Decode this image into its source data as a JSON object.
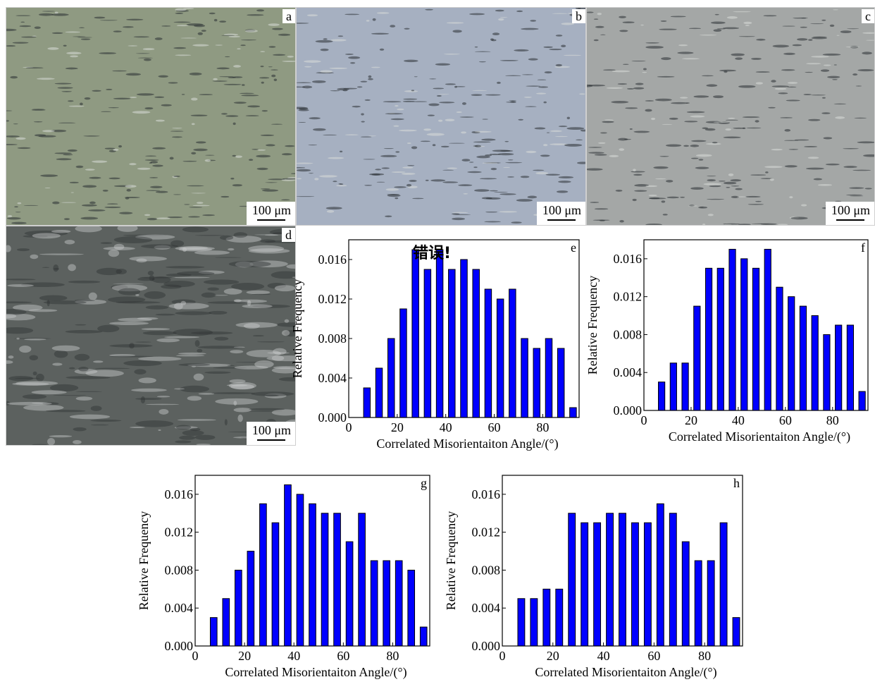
{
  "micrographs": [
    {
      "label": "a",
      "scale": "100  μm",
      "base": "#8f9a82"
    },
    {
      "label": "b",
      "scale": "100  μm",
      "base": "#a6b0c1"
    },
    {
      "label": "c",
      "scale": "100  μm",
      "base": "#a4a7a6"
    },
    {
      "label": "d",
      "scale": "100  μm",
      "base": "#5c615f"
    }
  ],
  "overlay_text": "错误!",
  "chart_data": [
    {
      "type": "bar",
      "panel": "e",
      "x": [
        7.5,
        12.5,
        17.5,
        22.5,
        27.5,
        32.5,
        37.5,
        42.5,
        47.5,
        52.5,
        57.5,
        62.5,
        67.5,
        72.5,
        77.5,
        82.5,
        87.5,
        92.5
      ],
      "values": [
        0.003,
        0.005,
        0.008,
        0.011,
        0.017,
        0.015,
        0.017,
        0.015,
        0.016,
        0.015,
        0.013,
        0.012,
        0.013,
        0.008,
        0.007,
        0.008,
        0.007,
        0.001
      ],
      "xlabel": "Correlated Misorientaiton Angle/(°)",
      "ylabel": "Relative Frequency",
      "xlim": [
        0,
        95
      ],
      "ylim": [
        0,
        0.018
      ],
      "xticks": [
        "0",
        "20",
        "40",
        "60",
        "80"
      ],
      "yticks": [
        "0.000",
        "0.004",
        "0.008",
        "0.012",
        "0.016"
      ],
      "color": "#0000ff"
    },
    {
      "type": "bar",
      "panel": "f",
      "x": [
        7.5,
        12.5,
        17.5,
        22.5,
        27.5,
        32.5,
        37.5,
        42.5,
        47.5,
        52.5,
        57.5,
        62.5,
        67.5,
        72.5,
        77.5,
        82.5,
        87.5,
        92.5
      ],
      "values": [
        0.003,
        0.005,
        0.005,
        0.011,
        0.015,
        0.015,
        0.017,
        0.016,
        0.015,
        0.017,
        0.013,
        0.012,
        0.011,
        0.01,
        0.008,
        0.009,
        0.009,
        0.002
      ],
      "xlabel": "Correlated Misorientaiton Angle/(°)",
      "ylabel": "Relative Frequency",
      "xlim": [
        0,
        95
      ],
      "ylim": [
        0,
        0.018
      ],
      "xticks": [
        "0",
        "20",
        "40",
        "60",
        "80"
      ],
      "yticks": [
        "0.000",
        "0.004",
        "0.008",
        "0.012",
        "0.016"
      ],
      "color": "#0000ff"
    },
    {
      "type": "bar",
      "panel": "g",
      "x": [
        7.5,
        12.5,
        17.5,
        22.5,
        27.5,
        32.5,
        37.5,
        42.5,
        47.5,
        52.5,
        57.5,
        62.5,
        67.5,
        72.5,
        77.5,
        82.5,
        87.5,
        92.5
      ],
      "values": [
        0.003,
        0.005,
        0.008,
        0.01,
        0.015,
        0.013,
        0.017,
        0.016,
        0.015,
        0.014,
        0.014,
        0.011,
        0.014,
        0.009,
        0.009,
        0.009,
        0.008,
        0.002
      ],
      "xlabel": "Correlated Misorientaiton Angle/(°)",
      "ylabel": "Relative Frequency",
      "xlim": [
        0,
        95
      ],
      "ylim": [
        0,
        0.018
      ],
      "xticks": [
        "0",
        "20",
        "40",
        "60",
        "80"
      ],
      "yticks": [
        "0.000",
        "0.004",
        "0.008",
        "0.012",
        "0.016"
      ],
      "color": "#0000ff"
    },
    {
      "type": "bar",
      "panel": "h",
      "x": [
        7.5,
        12.5,
        17.5,
        22.5,
        27.5,
        32.5,
        37.5,
        42.5,
        47.5,
        52.5,
        57.5,
        62.5,
        67.5,
        72.5,
        77.5,
        82.5,
        87.5,
        92.5
      ],
      "values": [
        0.005,
        0.005,
        0.006,
        0.006,
        0.014,
        0.013,
        0.013,
        0.014,
        0.014,
        0.013,
        0.013,
        0.015,
        0.014,
        0.011,
        0.009,
        0.009,
        0.013,
        0.003
      ],
      "xlabel": "Correlated Misorientaiton Angle/(°)",
      "ylabel": "Relative Frequency",
      "xlim": [
        0,
        95
      ],
      "ylim": [
        0,
        0.018
      ],
      "xticks": [
        "0",
        "20",
        "40",
        "60",
        "80"
      ],
      "yticks": [
        "0.000",
        "0.004",
        "0.008",
        "0.012",
        "0.016"
      ],
      "color": "#0000ff"
    }
  ]
}
